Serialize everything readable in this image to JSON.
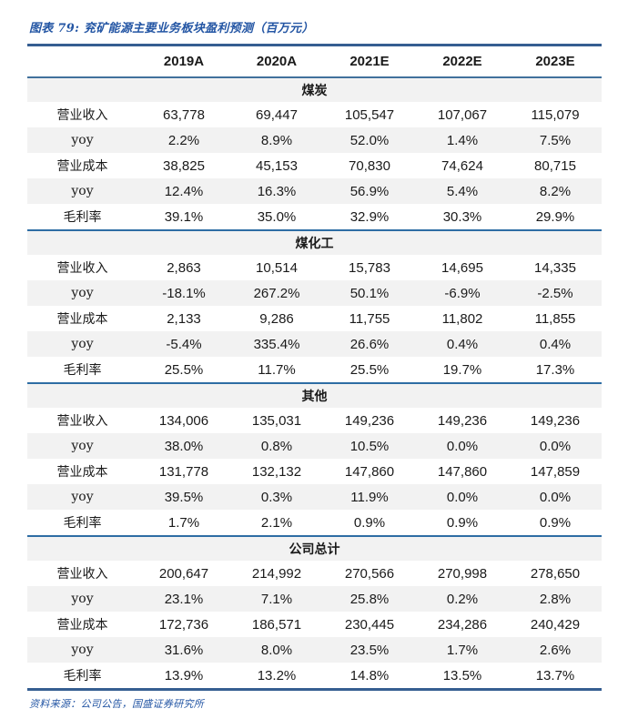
{
  "title": "图表 79: 兖矿能源主要业务板块盈利预测（百万元）",
  "source": "资料来源：公司公告，国盛证券研究所",
  "colors": {
    "accent_blue_text": "#2456a4",
    "rule_dark_navy": "#355e91",
    "rule_blue": "#2e6da4",
    "row_alt_gray": "#f2f2f2"
  },
  "table": {
    "columns": [
      "",
      "2019A",
      "2020A",
      "2021E",
      "2022E",
      "2023E"
    ],
    "sections": [
      {
        "name": "煤炭",
        "rows": [
          {
            "label": "营业收入",
            "values": [
              "63,778",
              "69,447",
              "105,547",
              "107,067",
              "115,079"
            ]
          },
          {
            "label": "yoy",
            "values": [
              "2.2%",
              "8.9%",
              "52.0%",
              "1.4%",
              "7.5%"
            ]
          },
          {
            "label": "营业成本",
            "values": [
              "38,825",
              "45,153",
              "70,830",
              "74,624",
              "80,715"
            ]
          },
          {
            "label": "yoy",
            "values": [
              "12.4%",
              "16.3%",
              "56.9%",
              "5.4%",
              "8.2%"
            ]
          },
          {
            "label": "毛利率",
            "values": [
              "39.1%",
              "35.0%",
              "32.9%",
              "30.3%",
              "29.9%"
            ]
          }
        ]
      },
      {
        "name": "煤化工",
        "rows": [
          {
            "label": "营业收入",
            "values": [
              "2,863",
              "10,514",
              "15,783",
              "14,695",
              "14,335"
            ]
          },
          {
            "label": "yoy",
            "values": [
              "-18.1%",
              "267.2%",
              "50.1%",
              "-6.9%",
              "-2.5%"
            ]
          },
          {
            "label": "营业成本",
            "values": [
              "2,133",
              "9,286",
              "11,755",
              "11,802",
              "11,855"
            ]
          },
          {
            "label": "yoy",
            "values": [
              "-5.4%",
              "335.4%",
              "26.6%",
              "0.4%",
              "0.4%"
            ]
          },
          {
            "label": "毛利率",
            "values": [
              "25.5%",
              "11.7%",
              "25.5%",
              "19.7%",
              "17.3%"
            ]
          }
        ]
      },
      {
        "name": "其他",
        "rows": [
          {
            "label": "营业收入",
            "values": [
              "134,006",
              "135,031",
              "149,236",
              "149,236",
              "149,236"
            ]
          },
          {
            "label": "yoy",
            "values": [
              "38.0%",
              "0.8%",
              "10.5%",
              "0.0%",
              "0.0%"
            ]
          },
          {
            "label": "营业成本",
            "values": [
              "131,778",
              "132,132",
              "147,860",
              "147,860",
              "147,859"
            ]
          },
          {
            "label": "yoy",
            "values": [
              "39.5%",
              "0.3%",
              "11.9%",
              "0.0%",
              "0.0%"
            ]
          },
          {
            "label": "毛利率",
            "values": [
              "1.7%",
              "2.1%",
              "0.9%",
              "0.9%",
              "0.9%"
            ]
          }
        ]
      },
      {
        "name": "公司总计",
        "rows": [
          {
            "label": "营业收入",
            "values": [
              "200,647",
              "214,992",
              "270,566",
              "270,998",
              "278,650"
            ]
          },
          {
            "label": "yoy",
            "values": [
              "23.1%",
              "7.1%",
              "25.8%",
              "0.2%",
              "2.8%"
            ]
          },
          {
            "label": "营业成本",
            "values": [
              "172,736",
              "186,571",
              "230,445",
              "234,286",
              "240,429"
            ]
          },
          {
            "label": "yoy",
            "values": [
              "31.6%",
              "8.0%",
              "23.5%",
              "1.7%",
              "2.6%"
            ]
          },
          {
            "label": "毛利率",
            "values": [
              "13.9%",
              "13.2%",
              "14.8%",
              "13.5%",
              "13.7%"
            ]
          }
        ]
      }
    ]
  }
}
